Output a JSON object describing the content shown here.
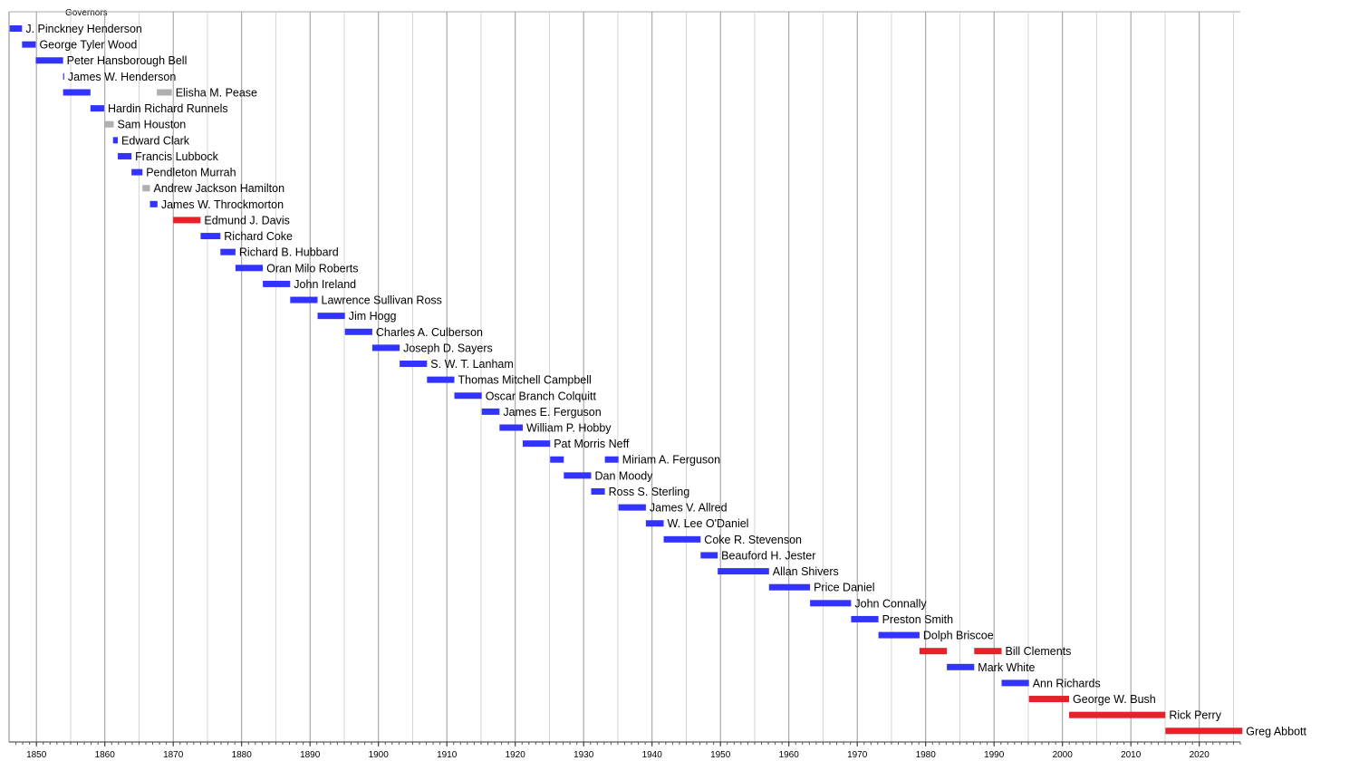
{
  "chart_data": {
    "type": "bar",
    "title": "Governors",
    "xlim": [
      1846,
      2026
    ],
    "x_ticks": [
      1850,
      1860,
      1870,
      1880,
      1890,
      1900,
      1910,
      1920,
      1930,
      1940,
      1950,
      1960,
      1970,
      1980,
      1990,
      2000,
      2010,
      2020
    ],
    "grid": true,
    "colors": {
      "blue": "#3333ff",
      "red": "#e8202a",
      "grey": "#b0b0b0"
    },
    "governors": [
      {
        "name": "J. Pinckney Henderson",
        "terms": [
          {
            "start": 1846.1,
            "end": 1847.9,
            "color": "blue"
          }
        ]
      },
      {
        "name": "George Tyler Wood",
        "terms": [
          {
            "start": 1847.9,
            "end": 1849.9,
            "color": "blue"
          }
        ]
      },
      {
        "name": "Peter Hansborough Bell",
        "terms": [
          {
            "start": 1849.9,
            "end": 1853.9,
            "color": "blue"
          }
        ]
      },
      {
        "name": "James W. Henderson",
        "terms": [
          {
            "start": 1853.9,
            "end": 1854.0,
            "color": "blue"
          }
        ]
      },
      {
        "name": "Elisha M. Pease",
        "terms": [
          {
            "start": 1853.9,
            "end": 1857.9,
            "color": "blue"
          },
          {
            "start": 1867.6,
            "end": 1869.8,
            "color": "grey"
          }
        ]
      },
      {
        "name": "Hardin Richard Runnels",
        "terms": [
          {
            "start": 1857.9,
            "end": 1859.9,
            "color": "blue"
          }
        ]
      },
      {
        "name": "Sam Houston",
        "terms": [
          {
            "start": 1859.9,
            "end": 1861.3,
            "color": "grey"
          }
        ]
      },
      {
        "name": "Edward Clark",
        "terms": [
          {
            "start": 1861.2,
            "end": 1861.9,
            "color": "blue"
          }
        ]
      },
      {
        "name": "Francis Lubbock",
        "terms": [
          {
            "start": 1861.9,
            "end": 1863.9,
            "color": "blue"
          }
        ]
      },
      {
        "name": "Pendleton Murrah",
        "terms": [
          {
            "start": 1863.9,
            "end": 1865.5,
            "color": "blue"
          }
        ]
      },
      {
        "name": "Andrew Jackson Hamilton",
        "terms": [
          {
            "start": 1865.5,
            "end": 1866.6,
            "color": "grey"
          }
        ]
      },
      {
        "name": "James W. Throckmorton",
        "terms": [
          {
            "start": 1866.6,
            "end": 1867.7,
            "color": "blue"
          }
        ]
      },
      {
        "name": "Edmund J. Davis",
        "terms": [
          {
            "start": 1870.0,
            "end": 1874.0,
            "color": "red"
          }
        ]
      },
      {
        "name": "Richard Coke",
        "terms": [
          {
            "start": 1874.0,
            "end": 1876.9,
            "color": "blue"
          }
        ]
      },
      {
        "name": "Richard B. Hubbard",
        "terms": [
          {
            "start": 1876.9,
            "end": 1879.1,
            "color": "blue"
          }
        ]
      },
      {
        "name": "Oran Milo Roberts",
        "terms": [
          {
            "start": 1879.1,
            "end": 1883.1,
            "color": "blue"
          }
        ]
      },
      {
        "name": "John Ireland",
        "terms": [
          {
            "start": 1883.1,
            "end": 1887.1,
            "color": "blue"
          }
        ]
      },
      {
        "name": "Lawrence Sullivan Ross",
        "terms": [
          {
            "start": 1887.1,
            "end": 1891.1,
            "color": "blue"
          }
        ]
      },
      {
        "name": "Jim Hogg",
        "terms": [
          {
            "start": 1891.1,
            "end": 1895.1,
            "color": "blue"
          }
        ]
      },
      {
        "name": "Charles A. Culberson",
        "terms": [
          {
            "start": 1895.1,
            "end": 1899.1,
            "color": "blue"
          }
        ]
      },
      {
        "name": "Joseph D. Sayers",
        "terms": [
          {
            "start": 1899.1,
            "end": 1903.1,
            "color": "blue"
          }
        ]
      },
      {
        "name": "S. W. T. Lanham",
        "terms": [
          {
            "start": 1903.1,
            "end": 1907.1,
            "color": "blue"
          }
        ]
      },
      {
        "name": "Thomas Mitchell Campbell",
        "terms": [
          {
            "start": 1907.1,
            "end": 1911.1,
            "color": "blue"
          }
        ]
      },
      {
        "name": "Oscar Branch Colquitt",
        "terms": [
          {
            "start": 1911.1,
            "end": 1915.1,
            "color": "blue"
          }
        ]
      },
      {
        "name": "James E. Ferguson",
        "terms": [
          {
            "start": 1915.1,
            "end": 1917.7,
            "color": "blue"
          }
        ]
      },
      {
        "name": "William P. Hobby",
        "terms": [
          {
            "start": 1917.7,
            "end": 1921.1,
            "color": "blue"
          }
        ]
      },
      {
        "name": "Pat Morris Neff",
        "terms": [
          {
            "start": 1921.1,
            "end": 1925.1,
            "color": "blue"
          }
        ]
      },
      {
        "name": "Miriam A. Ferguson",
        "terms": [
          {
            "start": 1925.1,
            "end": 1927.1,
            "color": "blue"
          },
          {
            "start": 1933.1,
            "end": 1935.1,
            "color": "blue"
          }
        ]
      },
      {
        "name": "Dan Moody",
        "terms": [
          {
            "start": 1927.1,
            "end": 1931.1,
            "color": "blue"
          }
        ]
      },
      {
        "name": "Ross S. Sterling",
        "terms": [
          {
            "start": 1931.1,
            "end": 1933.1,
            "color": "blue"
          }
        ]
      },
      {
        "name": "James V. Allred",
        "terms": [
          {
            "start": 1935.1,
            "end": 1939.1,
            "color": "blue"
          }
        ]
      },
      {
        "name": "W. Lee O'Daniel",
        "terms": [
          {
            "start": 1939.1,
            "end": 1941.7,
            "color": "blue"
          }
        ]
      },
      {
        "name": "Coke R. Stevenson",
        "terms": [
          {
            "start": 1941.7,
            "end": 1947.1,
            "color": "blue"
          }
        ]
      },
      {
        "name": "Beauford H. Jester",
        "terms": [
          {
            "start": 1947.1,
            "end": 1949.6,
            "color": "blue"
          }
        ]
      },
      {
        "name": "Allan Shivers",
        "terms": [
          {
            "start": 1949.6,
            "end": 1957.1,
            "color": "blue"
          }
        ]
      },
      {
        "name": "Price Daniel",
        "terms": [
          {
            "start": 1957.1,
            "end": 1963.1,
            "color": "blue"
          }
        ]
      },
      {
        "name": "John Connally",
        "terms": [
          {
            "start": 1963.1,
            "end": 1969.1,
            "color": "blue"
          }
        ]
      },
      {
        "name": "Preston Smith",
        "terms": [
          {
            "start": 1969.1,
            "end": 1973.1,
            "color": "blue"
          }
        ]
      },
      {
        "name": "Dolph Briscoe",
        "terms": [
          {
            "start": 1973.1,
            "end": 1979.1,
            "color": "blue"
          }
        ]
      },
      {
        "name": "Bill Clements",
        "terms": [
          {
            "start": 1979.1,
            "end": 1983.1,
            "color": "red"
          },
          {
            "start": 1987.1,
            "end": 1991.1,
            "color": "red"
          }
        ]
      },
      {
        "name": "Mark White",
        "terms": [
          {
            "start": 1983.1,
            "end": 1987.1,
            "color": "blue"
          }
        ]
      },
      {
        "name": "Ann Richards",
        "terms": [
          {
            "start": 1991.1,
            "end": 1995.1,
            "color": "blue"
          }
        ]
      },
      {
        "name": "George W. Bush",
        "terms": [
          {
            "start": 1995.1,
            "end": 2000.97,
            "color": "red"
          }
        ]
      },
      {
        "name": "Rick Perry",
        "terms": [
          {
            "start": 2000.97,
            "end": 2015.05,
            "color": "red"
          }
        ]
      },
      {
        "name": "Greg Abbott",
        "terms": [
          {
            "start": 2015.05,
            "end": 2026.3,
            "color": "red"
          }
        ]
      }
    ]
  }
}
